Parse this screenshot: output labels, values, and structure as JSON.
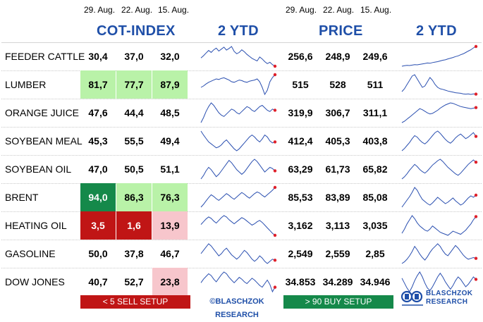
{
  "header": {
    "cot_dates": [
      "29. Aug.",
      "22. Aug.",
      "15. Aug."
    ],
    "price_dates": [
      "29. Aug.",
      "22. Aug.",
      "15. Aug."
    ],
    "cot_title": "COT-INDEX",
    "cot_ytd_title": "2 YTD",
    "price_title": "PRICE",
    "price_ytd_title": "2 YTD"
  },
  "colors": {
    "light_green": "#b9f2a8",
    "dark_green": "#15894a",
    "dark_red": "#c01515",
    "light_red": "#f7c6cc",
    "title_blue": "#1f4fa8",
    "spark_blue": "#2a4fb0",
    "dot_red": "#e0202a"
  },
  "chart_data": {
    "type": "table",
    "columns": [
      "COT-INDEX 29. Aug.",
      "COT-INDEX 22. Aug.",
      "COT-INDEX 15. Aug.",
      "COT-INDEX 2 YTD",
      "PRICE 29. Aug.",
      "PRICE 22. Aug.",
      "PRICE 15. Aug.",
      "PRICE 2 YTD"
    ],
    "rows": [
      {
        "label": "FEEDER CATTLE",
        "cot": [
          "30,4",
          "37,0",
          "32,0"
        ],
        "cot_hl": [
          "none",
          "none",
          "none"
        ],
        "price": [
          "256,6",
          "248,9",
          "249,6"
        ],
        "cot_spark": [
          55,
          62,
          70,
          78,
          72,
          80,
          85,
          76,
          82,
          88,
          79,
          84,
          90,
          75,
          68,
          72,
          80,
          74,
          66,
          60,
          54,
          50,
          46,
          58,
          52,
          44,
          38,
          42,
          35,
          30
        ],
        "price_spark": [
          10,
          12,
          14,
          13,
          15,
          17,
          16,
          18,
          20,
          22,
          24,
          23,
          26,
          28,
          30,
          33,
          36,
          38,
          42,
          45,
          48,
          52,
          55,
          60,
          64,
          70,
          76,
          82,
          90,
          96
        ]
      },
      {
        "label": "LUMBER",
        "cot": [
          "81,7",
          "77,7",
          "87,9"
        ],
        "cot_hl": [
          "light_green",
          "light_green",
          "light_green"
        ],
        "price": [
          "515",
          "528",
          "511"
        ],
        "cot_spark": [
          40,
          45,
          52,
          58,
          62,
          66,
          70,
          68,
          72,
          74,
          70,
          66,
          60,
          58,
          62,
          66,
          64,
          60,
          58,
          62,
          64,
          66,
          70,
          60,
          40,
          15,
          30,
          60,
          75,
          85
        ],
        "price_spark": [
          30,
          40,
          55,
          70,
          85,
          90,
          75,
          60,
          45,
          50,
          65,
          80,
          70,
          55,
          45,
          40,
          38,
          35,
          32,
          30,
          28,
          26,
          25,
          24,
          22,
          21,
          22,
          20,
          22,
          21
        ]
      },
      {
        "label": "ORANGE JUICE",
        "cot": [
          "47,6",
          "44,4",
          "48,5"
        ],
        "cot_hl": [
          "none",
          "none",
          "none"
        ],
        "price": [
          "319,9",
          "306,7",
          "311,1"
        ],
        "cot_spark": [
          30,
          38,
          48,
          56,
          62,
          58,
          52,
          46,
          42,
          40,
          44,
          48,
          52,
          50,
          46,
          44,
          48,
          52,
          56,
          54,
          50,
          48,
          52,
          56,
          58,
          54,
          50,
          48,
          52,
          50
        ],
        "price_spark": [
          15,
          20,
          28,
          36,
          44,
          52,
          60,
          68,
          64,
          58,
          52,
          48,
          50,
          56,
          62,
          70,
          76,
          82,
          86,
          90,
          88,
          84,
          80,
          76,
          74,
          72,
          70,
          68,
          70,
          72
        ]
      },
      {
        "label": "SOYBEAN MEAL",
        "cot": [
          "45,3",
          "55,5",
          "49,4"
        ],
        "cot_hl": [
          "none",
          "none",
          "none"
        ],
        "price": [
          "412,4",
          "405,3",
          "403,8"
        ],
        "cot_spark": [
          70,
          62,
          55,
          48,
          44,
          40,
          36,
          38,
          42,
          48,
          52,
          46,
          40,
          34,
          30,
          34,
          40,
          46,
          52,
          58,
          62,
          58,
          52,
          48,
          54,
          62,
          58,
          50,
          46,
          48
        ],
        "price_spark": [
          20,
          26,
          34,
          42,
          52,
          60,
          56,
          48,
          42,
          38,
          44,
          52,
          60,
          68,
          72,
          66,
          58,
          50,
          44,
          40,
          46,
          54,
          60,
          64,
          58,
          52,
          56,
          62,
          68,
          58
        ]
      },
      {
        "label": "SOYBEAN OIL",
        "cot": [
          "47,0",
          "50,5",
          "51,1"
        ],
        "cot_hl": [
          "none",
          "none",
          "none"
        ],
        "price": [
          "63,29",
          "61,73",
          "65,82"
        ],
        "cot_spark": [
          40,
          46,
          54,
          60,
          56,
          50,
          44,
          48,
          54,
          60,
          66,
          72,
          68,
          62,
          56,
          52,
          48,
          52,
          58,
          64,
          70,
          74,
          70,
          64,
          58,
          52,
          56,
          60,
          58,
          54
        ],
        "price_spark": [
          20,
          26,
          34,
          44,
          52,
          60,
          54,
          46,
          40,
          36,
          42,
          50,
          58,
          64,
          70,
          74,
          68,
          60,
          52,
          46,
          40,
          34,
          30,
          36,
          44,
          52,
          60,
          66,
          72,
          66
        ]
      },
      {
        "label": "BRENT",
        "cot": [
          "94,0",
          "86,3",
          "76,3"
        ],
        "cot_hl": [
          "dark_green",
          "light_green",
          "light_green"
        ],
        "price": [
          "85,53",
          "83,89",
          "85,08"
        ],
        "cot_spark": [
          20,
          30,
          42,
          54,
          64,
          58,
          50,
          44,
          52,
          60,
          68,
          62,
          54,
          48,
          56,
          64,
          72,
          66,
          58,
          52,
          60,
          68,
          74,
          70,
          62,
          56,
          64,
          72,
          80,
          90
        ],
        "price_spark": [
          30,
          40,
          50,
          60,
          72,
          86,
          78,
          64,
          52,
          46,
          40,
          36,
          42,
          50,
          58,
          52,
          46,
          40,
          44,
          50,
          56,
          48,
          42,
          36,
          40,
          48,
          56,
          62,
          58,
          64
        ]
      },
      {
        "label": "HEATING OIL",
        "cot": [
          "3,5",
          "1,6",
          "13,9"
        ],
        "cot_hl": [
          "dark_red",
          "dark_red",
          "light_red"
        ],
        "price": [
          "3,162",
          "3,113",
          "3,035"
        ],
        "cot_spark": [
          50,
          58,
          66,
          72,
          68,
          60,
          54,
          62,
          70,
          76,
          72,
          64,
          58,
          52,
          58,
          64,
          70,
          66,
          60,
          54,
          48,
          52,
          58,
          62,
          56,
          48,
          40,
          32,
          24,
          18
        ],
        "price_spark": [
          30,
          38,
          48,
          56,
          64,
          58,
          50,
          44,
          40,
          36,
          34,
          38,
          44,
          40,
          36,
          32,
          30,
          28,
          26,
          30,
          34,
          32,
          30,
          28,
          32,
          36,
          42,
          48,
          56,
          62
        ]
      },
      {
        "label": "GASOLINE",
        "cot": [
          "50,0",
          "37,8",
          "46,7"
        ],
        "cot_hl": [
          "none",
          "none",
          "none"
        ],
        "price": [
          "2,549",
          "2,559",
          "2,85"
        ],
        "cot_spark": [
          60,
          66,
          72,
          78,
          74,
          68,
          62,
          56,
          60,
          66,
          70,
          64,
          58,
          54,
          50,
          54,
          60,
          66,
          62,
          56,
          50,
          46,
          50,
          56,
          52,
          46,
          42,
          46,
          50,
          48
        ],
        "price_spark": [
          30,
          34,
          40,
          48,
          58,
          70,
          62,
          52,
          44,
          38,
          46,
          56,
          64,
          70,
          76,
          70,
          60,
          52,
          48,
          56,
          64,
          72,
          66,
          58,
          50,
          44,
          40,
          42,
          44,
          42
        ]
      },
      {
        "label": "DOW JONES",
        "cot": [
          "40,7",
          "52,7",
          "23,8"
        ],
        "cot_hl": [
          "none",
          "none",
          "light_red"
        ],
        "price": [
          "34.853",
          "34.289",
          "34.946"
        ],
        "cot_spark": [
          50,
          58,
          64,
          70,
          66,
          58,
          52,
          60,
          68,
          74,
          70,
          62,
          56,
          50,
          56,
          62,
          58,
          52,
          48,
          54,
          60,
          56,
          50,
          44,
          40,
          48,
          56,
          46,
          30,
          40
        ],
        "price_spark": [
          60,
          52,
          44,
          38,
          46,
          56,
          64,
          70,
          62,
          52,
          44,
          40,
          46,
          54,
          62,
          68,
          62,
          54,
          48,
          42,
          48,
          56,
          62,
          58,
          52,
          46,
          50,
          56,
          62,
          58
        ]
      }
    ]
  },
  "footer": {
    "sell_setup": "< 5 SELL SETUP",
    "credit": "©BLASCHZOK RESEARCH",
    "buy_setup": "> 90 BUY SETUP",
    "logo_line1": "BLASCHZOK",
    "logo_line2": "RESEARCH"
  }
}
